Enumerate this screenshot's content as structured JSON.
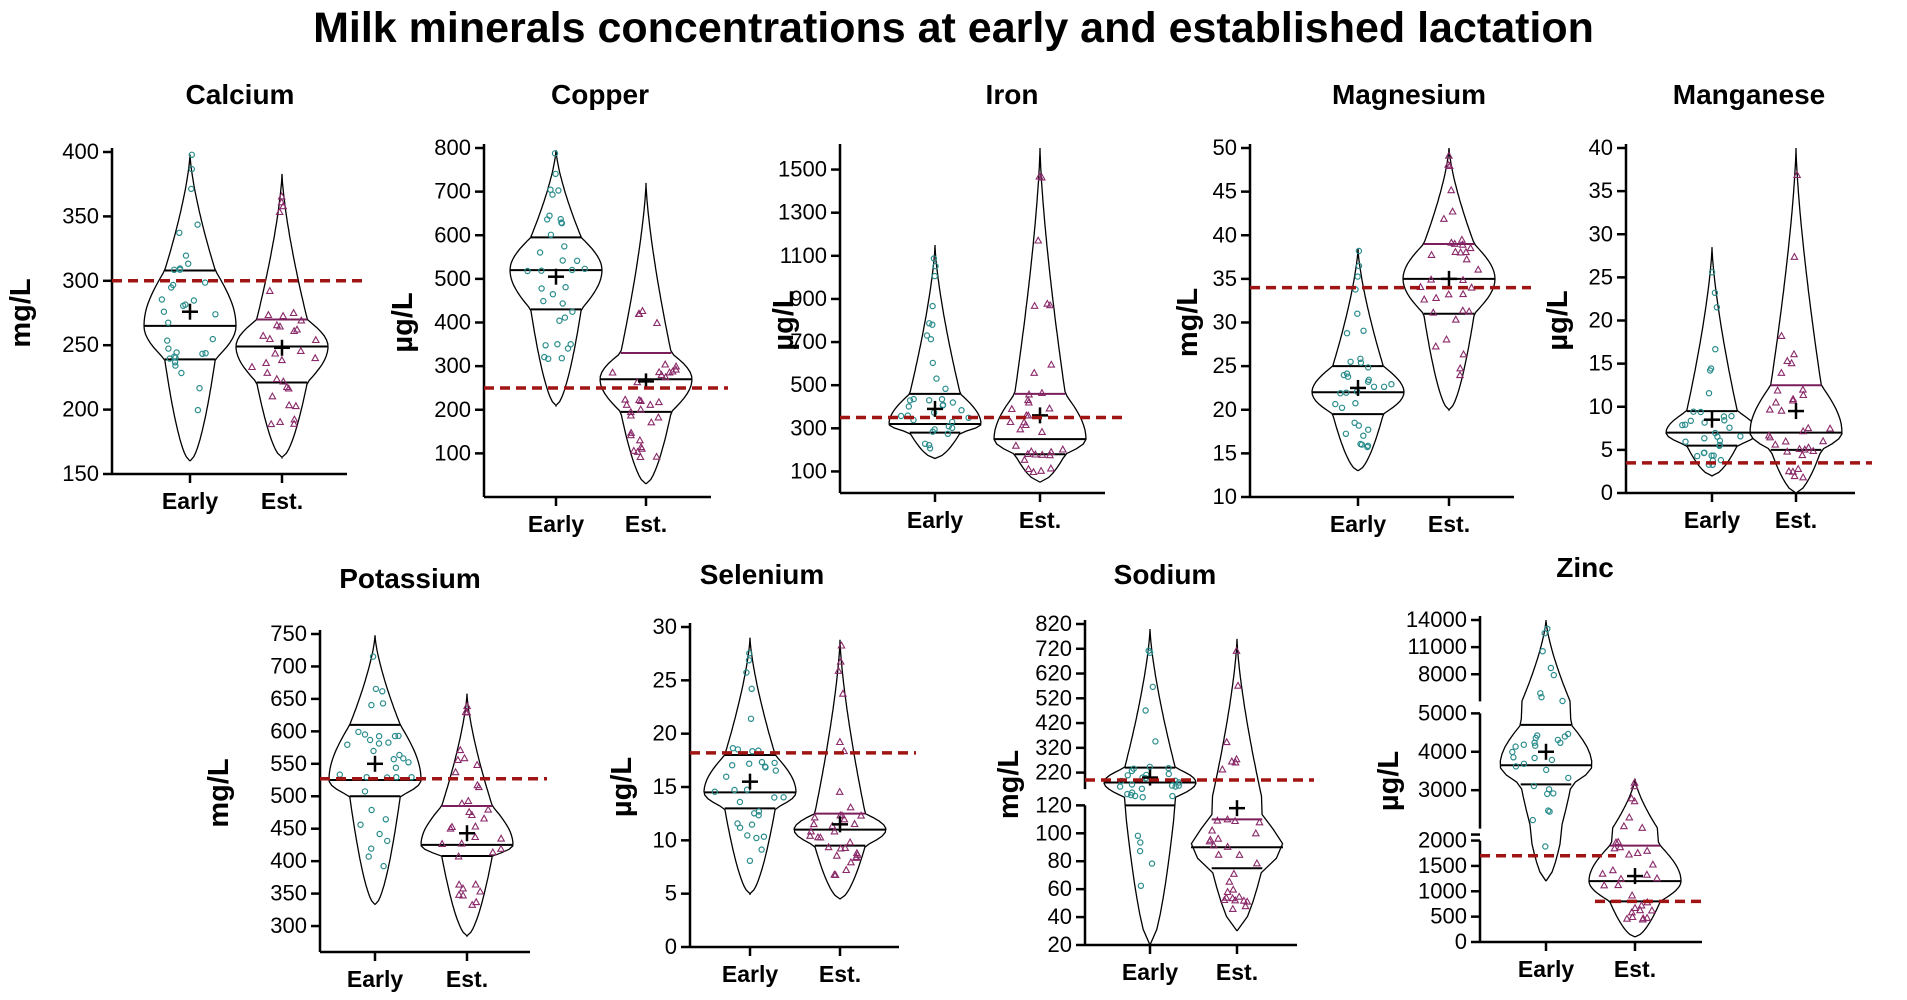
{
  "title": "Milk minerals concentrations at early and established lactation",
  "colors": {
    "early_points": "#2a8c8c",
    "est_points": "#8a2a6a",
    "reference_line": "#a01414",
    "outline": "#000000"
  },
  "chart_data": [
    {
      "type": "violin",
      "title": "Calcium",
      "ylabel": "mg/L",
      "ylim": [
        150,
        400
      ],
      "ticks": [
        150,
        200,
        250,
        300,
        350,
        400
      ],
      "categories": [
        "Early",
        "Est."
      ],
      "reference": [
        300
      ],
      "series": [
        {
          "name": "Early",
          "min": 160,
          "max": 398,
          "q1": 239,
          "median": 265,
          "q3": 308,
          "mean": 276,
          "marker": "circle"
        },
        {
          "name": "Est.",
          "min": 163,
          "max": 383,
          "q1": 221,
          "median": 249,
          "q3": 270,
          "mean": 248,
          "marker": "triangle"
        }
      ]
    },
    {
      "type": "violin",
      "title": "Copper",
      "ylabel": "µg/L",
      "ylim": [
        0,
        800
      ],
      "ticks": [
        100,
        200,
        300,
        400,
        500,
        600,
        700,
        800
      ],
      "categories": [
        "Early",
        "Est."
      ],
      "reference": [
        250
      ],
      "series": [
        {
          "name": "Early",
          "min": 210,
          "max": 795,
          "q1": 430,
          "median": 520,
          "q3": 595,
          "mean": 505,
          "marker": "circle"
        },
        {
          "name": "Est.",
          "min": 30,
          "max": 720,
          "q1": 195,
          "median": 270,
          "q3": 330,
          "mean": 265,
          "marker": "triangle"
        }
      ]
    },
    {
      "type": "violin",
      "title": "Iron",
      "ylabel": "µg/L",
      "ylim": [
        0,
        1600
      ],
      "ticks": [
        100,
        300,
        500,
        700,
        900,
        1100,
        1300,
        1500
      ],
      "categories": [
        "Early",
        "Est."
      ],
      "reference": [
        350
      ],
      "series": [
        {
          "name": "Early",
          "min": 160,
          "max": 1150,
          "q1": 280,
          "median": 320,
          "q3": 460,
          "mean": 390,
          "marker": "circle"
        },
        {
          "name": "Est.",
          "min": 50,
          "max": 1600,
          "q1": 180,
          "median": 250,
          "q3": 460,
          "mean": 360,
          "marker": "triangle"
        }
      ]
    },
    {
      "type": "violin",
      "title": "Magnesium",
      "ylabel": "mg/L",
      "ylim": [
        10,
        50
      ],
      "ticks": [
        10,
        15,
        20,
        25,
        30,
        35,
        40,
        45,
        50
      ],
      "categories": [
        "Early",
        "Est."
      ],
      "reference": [
        34
      ],
      "series": [
        {
          "name": "Early",
          "min": 13,
          "max": 38.5,
          "q1": 19.5,
          "median": 22,
          "q3": 25,
          "mean": 22.5,
          "marker": "circle"
        },
        {
          "name": "Est.",
          "min": 20,
          "max": 50,
          "q1": 31,
          "median": 35,
          "q3": 39,
          "mean": 35,
          "marker": "triangle"
        }
      ]
    },
    {
      "type": "violin",
      "title": "Manganese",
      "ylabel": "µg/L",
      "ylim": [
        0,
        40
      ],
      "ticks": [
        0,
        5,
        10,
        15,
        20,
        25,
        30,
        35,
        40
      ],
      "categories": [
        "Early",
        "Est."
      ],
      "reference": [
        3.5
      ],
      "series": [
        {
          "name": "Early",
          "min": 2,
          "max": 28.5,
          "q1": 5.5,
          "median": 7,
          "q3": 9.5,
          "mean": 8.5,
          "marker": "circle"
        },
        {
          "name": "Est.",
          "min": 0,
          "max": 40,
          "q1": 5,
          "median": 7,
          "q3": 12.5,
          "mean": 9.5,
          "marker": "triangle"
        }
      ]
    },
    {
      "type": "violin",
      "title": "Potassium",
      "ylabel": "mg/L",
      "ylim": [
        260,
        750
      ],
      "ticks": [
        300,
        350,
        400,
        450,
        500,
        550,
        600,
        650,
        700,
        750
      ],
      "categories": [
        "Early",
        "Est."
      ],
      "reference": [
        527
      ],
      "series": [
        {
          "name": "Early",
          "min": 333,
          "max": 748,
          "q1": 500,
          "median": 525,
          "q3": 610,
          "mean": 550,
          "marker": "circle"
        },
        {
          "name": "Est.",
          "min": 285,
          "max": 658,
          "q1": 408,
          "median": 425,
          "q3": 485,
          "mean": 443,
          "marker": "triangle"
        }
      ]
    },
    {
      "type": "violin",
      "title": "Selenium",
      "ylabel": "µg/L",
      "ylim": [
        0,
        30
      ],
      "ticks": [
        0,
        5,
        10,
        15,
        20,
        25,
        30
      ],
      "categories": [
        "Early",
        "Est."
      ],
      "reference": [
        18.2
      ],
      "series": [
        {
          "name": "Early",
          "min": 5,
          "max": 29,
          "q1": 13,
          "median": 14.5,
          "q3": 18,
          "mean": 15.5,
          "marker": "circle"
        },
        {
          "name": "Est.",
          "min": 4.5,
          "max": 28.8,
          "q1": 9.5,
          "median": 11,
          "q3": 12.5,
          "mean": 11.5,
          "marker": "triangle"
        }
      ]
    },
    {
      "type": "violin",
      "title": "Sodium",
      "ylabel": "mg/L",
      "ylim": [
        20,
        820
      ],
      "ticks": [
        20,
        40,
        60,
        80,
        100,
        120,
        220,
        320,
        420,
        520,
        620,
        720,
        820
      ],
      "categories": [
        "Early",
        "Est."
      ],
      "reference": [
        190
      ],
      "series": [
        {
          "name": "Early",
          "min": 20,
          "max": 800,
          "q1": 120,
          "median": 180,
          "q3": 240,
          "mean": 200,
          "marker": "circle"
        },
        {
          "name": "Est.",
          "min": 30,
          "max": 760,
          "q1": 75,
          "median": 90,
          "q3": 110,
          "mean": 118,
          "marker": "triangle"
        }
      ]
    },
    {
      "type": "violin",
      "title": "Zinc",
      "ylabel": "µg/L",
      "ylim": [
        0,
        14000
      ],
      "ticks": [
        0,
        500,
        1000,
        1500,
        2000,
        3000,
        4000,
        5000,
        8000,
        11000,
        14000
      ],
      "categories": [
        "Early",
        "Est."
      ],
      "reference": [
        1700,
        800
      ],
      "series": [
        {
          "name": "Early",
          "min": 1200,
          "max": 14000,
          "q1": 3150,
          "median": 3650,
          "q3": 4700,
          "mean": 4000,
          "marker": "circle"
        },
        {
          "name": "Est.",
          "min": 100,
          "max": 3300,
          "q1": 800,
          "median": 1200,
          "q3": 1900,
          "mean": 1300,
          "marker": "triangle"
        }
      ]
    }
  ]
}
